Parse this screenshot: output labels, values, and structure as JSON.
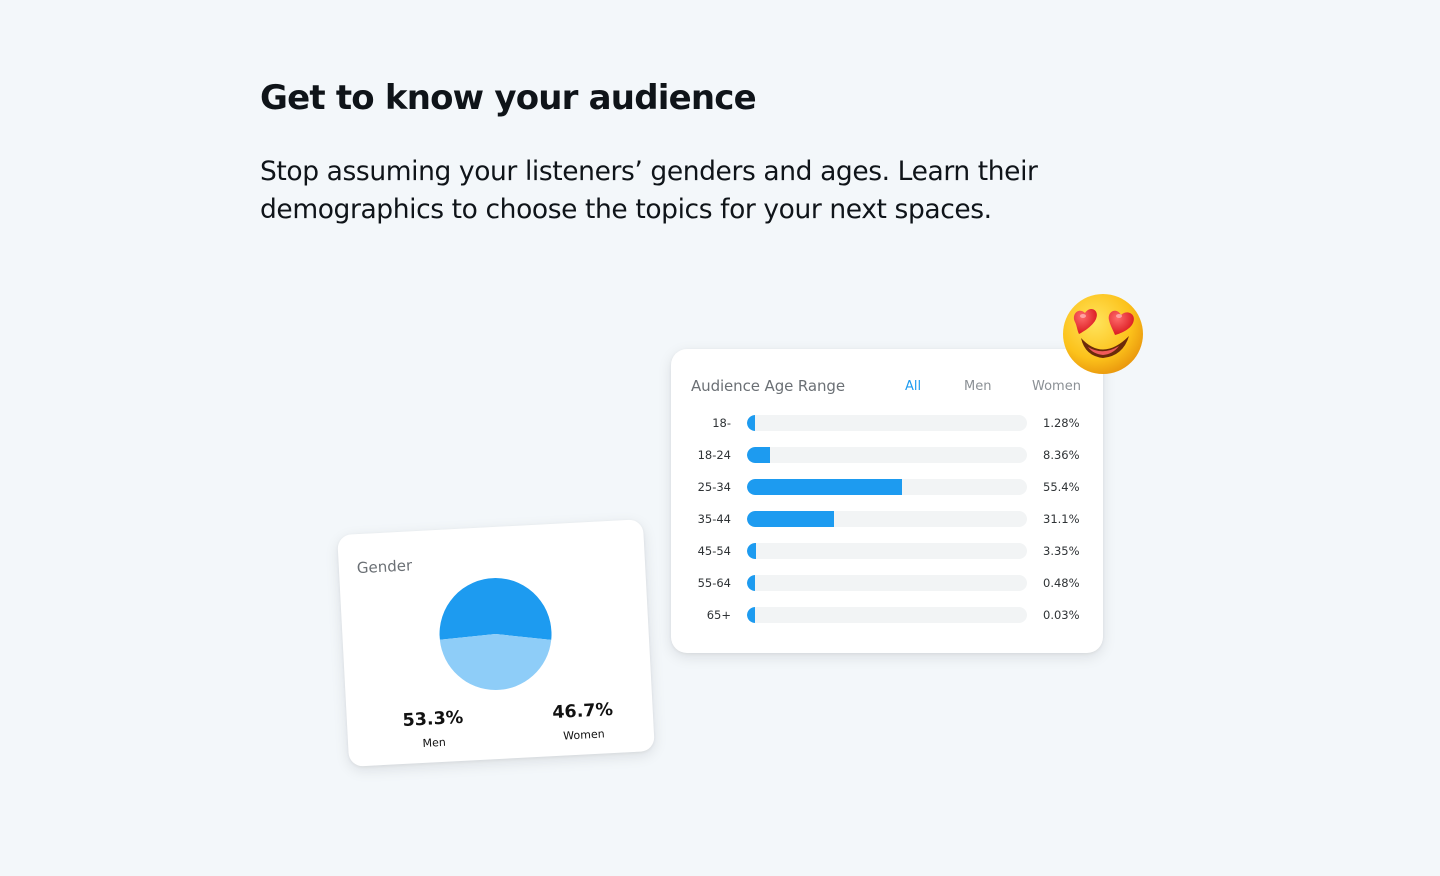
{
  "headline": "Get to know your audience",
  "subtext": "Stop assuming your listeners’ genders and ages. Learn their demographics to choose the topics for your next spaces.",
  "age_card": {
    "title": "Audience Age Range",
    "filters": [
      "All",
      "Men",
      "Women"
    ],
    "active_filter": "All"
  },
  "gender_card": {
    "title": "Gender"
  },
  "colors": {
    "accent": "#1d9bf0",
    "accent_light": "#8ecdf8",
    "track": "#f2f4f5",
    "background": "#f3f7fa"
  },
  "chart_data": [
    {
      "type": "bar",
      "title": "Audience Age Range",
      "categories": [
        "18-",
        "18-24",
        "25-34",
        "35-44",
        "45-54",
        "55-64",
        "65+"
      ],
      "values": [
        1.28,
        8.36,
        55.4,
        31.1,
        3.35,
        0.48,
        0.03
      ],
      "value_labels": [
        "1.28%",
        "8.36%",
        "55.4%",
        "31.1%",
        "3.35%",
        "0.48%",
        "0.03%"
      ],
      "orientation": "horizontal",
      "xlim": [
        0,
        100
      ]
    },
    {
      "type": "pie",
      "title": "Gender",
      "categories": [
        "Men",
        "Women"
      ],
      "values": [
        53.3,
        46.7
      ],
      "value_labels": [
        "53.3%",
        "46.7%"
      ],
      "colors": [
        "#1d9bf0",
        "#8ecdf8"
      ]
    }
  ]
}
